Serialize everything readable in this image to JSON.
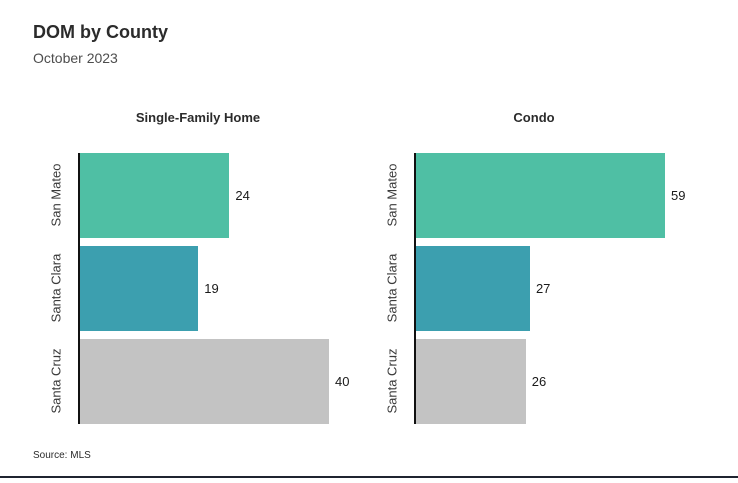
{
  "header": {
    "title": "DOM by County",
    "subtitle": "October 2023"
  },
  "footer": {
    "source": "Source: MLS"
  },
  "chart_data": {
    "type": "bar",
    "orientation": "horizontal",
    "title": "DOM by County",
    "subtitle": "October 2023",
    "categories": [
      "San Mateo",
      "Santa Clara",
      "Santa Cruz"
    ],
    "series": [
      {
        "name": "Single-Family Home",
        "values": [
          24,
          19,
          40
        ]
      },
      {
        "name": "Condo",
        "values": [
          59,
          27,
          26
        ]
      }
    ],
    "bar_colors": [
      "#4FBFA4",
      "#3C9FAF",
      "#C3C3C3"
    ],
    "value_labels": true,
    "grid": false,
    "legend": "none",
    "xlim_per_panel": [
      [
        0,
        40
      ],
      [
        0,
        59
      ]
    ],
    "source": "Source: MLS"
  }
}
